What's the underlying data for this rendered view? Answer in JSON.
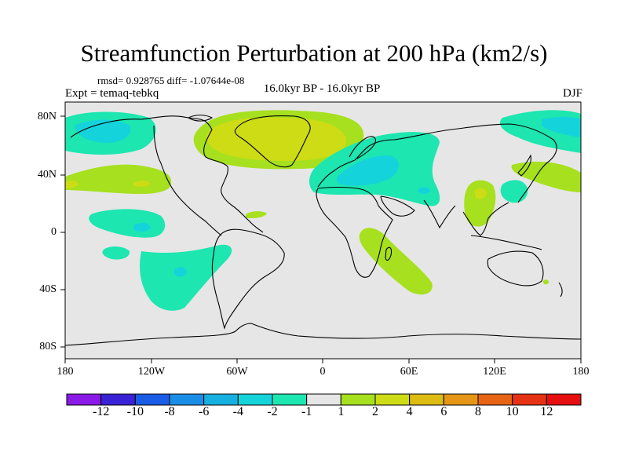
{
  "header": {
    "title": "Streamfunction Perturbation at 200 hPa (km2/s)",
    "stats": "rmsd= 0.928765 diff= -1.07644e-08",
    "experiment": "Expt = temaq-tebkq",
    "period": "16.0kyr BP - 16.0kyr BP",
    "season": "DJF"
  },
  "axes": {
    "lat_labels": [
      "80N",
      "40N",
      "0",
      "40S",
      "80S"
    ],
    "lon_labels": [
      "180",
      "120W",
      "60W",
      "0",
      "60E",
      "120E",
      "180"
    ]
  },
  "colorbar": {
    "labels": [
      "-12",
      "-10",
      "-8",
      "-6",
      "-4",
      "-2",
      "-1",
      "1",
      "2",
      "4",
      "6",
      "8",
      "10",
      "12"
    ],
    "colors": [
      "#8b1ae6",
      "#3a22d6",
      "#1a5ce6",
      "#1a8ee6",
      "#16b0e0",
      "#14d3db",
      "#1de6b0",
      "#e6e6e6",
      "#a6e01e",
      "#cddc14",
      "#dcbc12",
      "#e69616",
      "#e66414",
      "#e63214",
      "#e60f0f"
    ]
  },
  "map_colors": {
    "background": "#e6e6e6",
    "pos1": "#a6e01e",
    "pos2": "#cddc14",
    "pos3": "#dcbc12",
    "neg1": "#1de6b0",
    "neg2": "#14d3db"
  }
}
